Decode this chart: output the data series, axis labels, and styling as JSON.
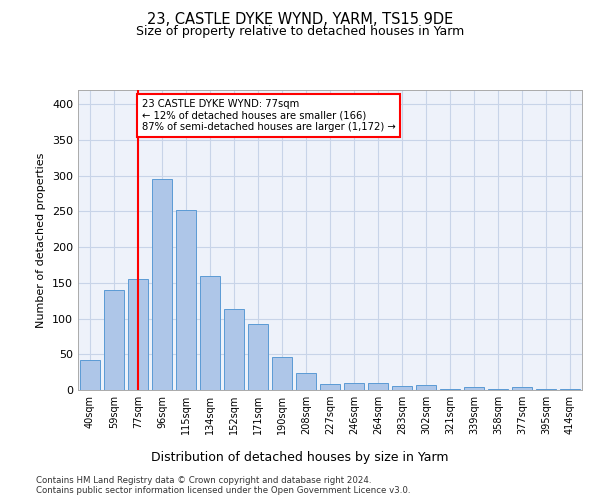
{
  "title1": "23, CASTLE DYKE WYND, YARM, TS15 9DE",
  "title2": "Size of property relative to detached houses in Yarm",
  "xlabel": "Distribution of detached houses by size in Yarm",
  "ylabel": "Number of detached properties",
  "categories": [
    "40sqm",
    "59sqm",
    "77sqm",
    "96sqm",
    "115sqm",
    "134sqm",
    "152sqm",
    "171sqm",
    "190sqm",
    "208sqm",
    "227sqm",
    "246sqm",
    "264sqm",
    "283sqm",
    "302sqm",
    "321sqm",
    "339sqm",
    "358sqm",
    "377sqm",
    "395sqm",
    "414sqm"
  ],
  "values": [
    42,
    140,
    155,
    295,
    252,
    160,
    113,
    92,
    46,
    24,
    8,
    10,
    10,
    5,
    7,
    2,
    4,
    2,
    4,
    2,
    2
  ],
  "bar_color": "#aec6e8",
  "bar_edge_color": "#5b9bd5",
  "property_line_x": 2,
  "annotation_text": "23 CASTLE DYKE WYND: 77sqm\n← 12% of detached houses are smaller (166)\n87% of semi-detached houses are larger (1,172) →",
  "annotation_box_color": "white",
  "annotation_box_edge": "red",
  "vline_color": "red",
  "footer_line1": "Contains HM Land Registry data © Crown copyright and database right 2024.",
  "footer_line2": "Contains public sector information licensed under the Open Government Licence v3.0.",
  "ylim": [
    0,
    420
  ],
  "yticks": [
    0,
    50,
    100,
    150,
    200,
    250,
    300,
    350,
    400
  ],
  "background_color": "#eef2fa",
  "grid_color": "#c8d4e8"
}
